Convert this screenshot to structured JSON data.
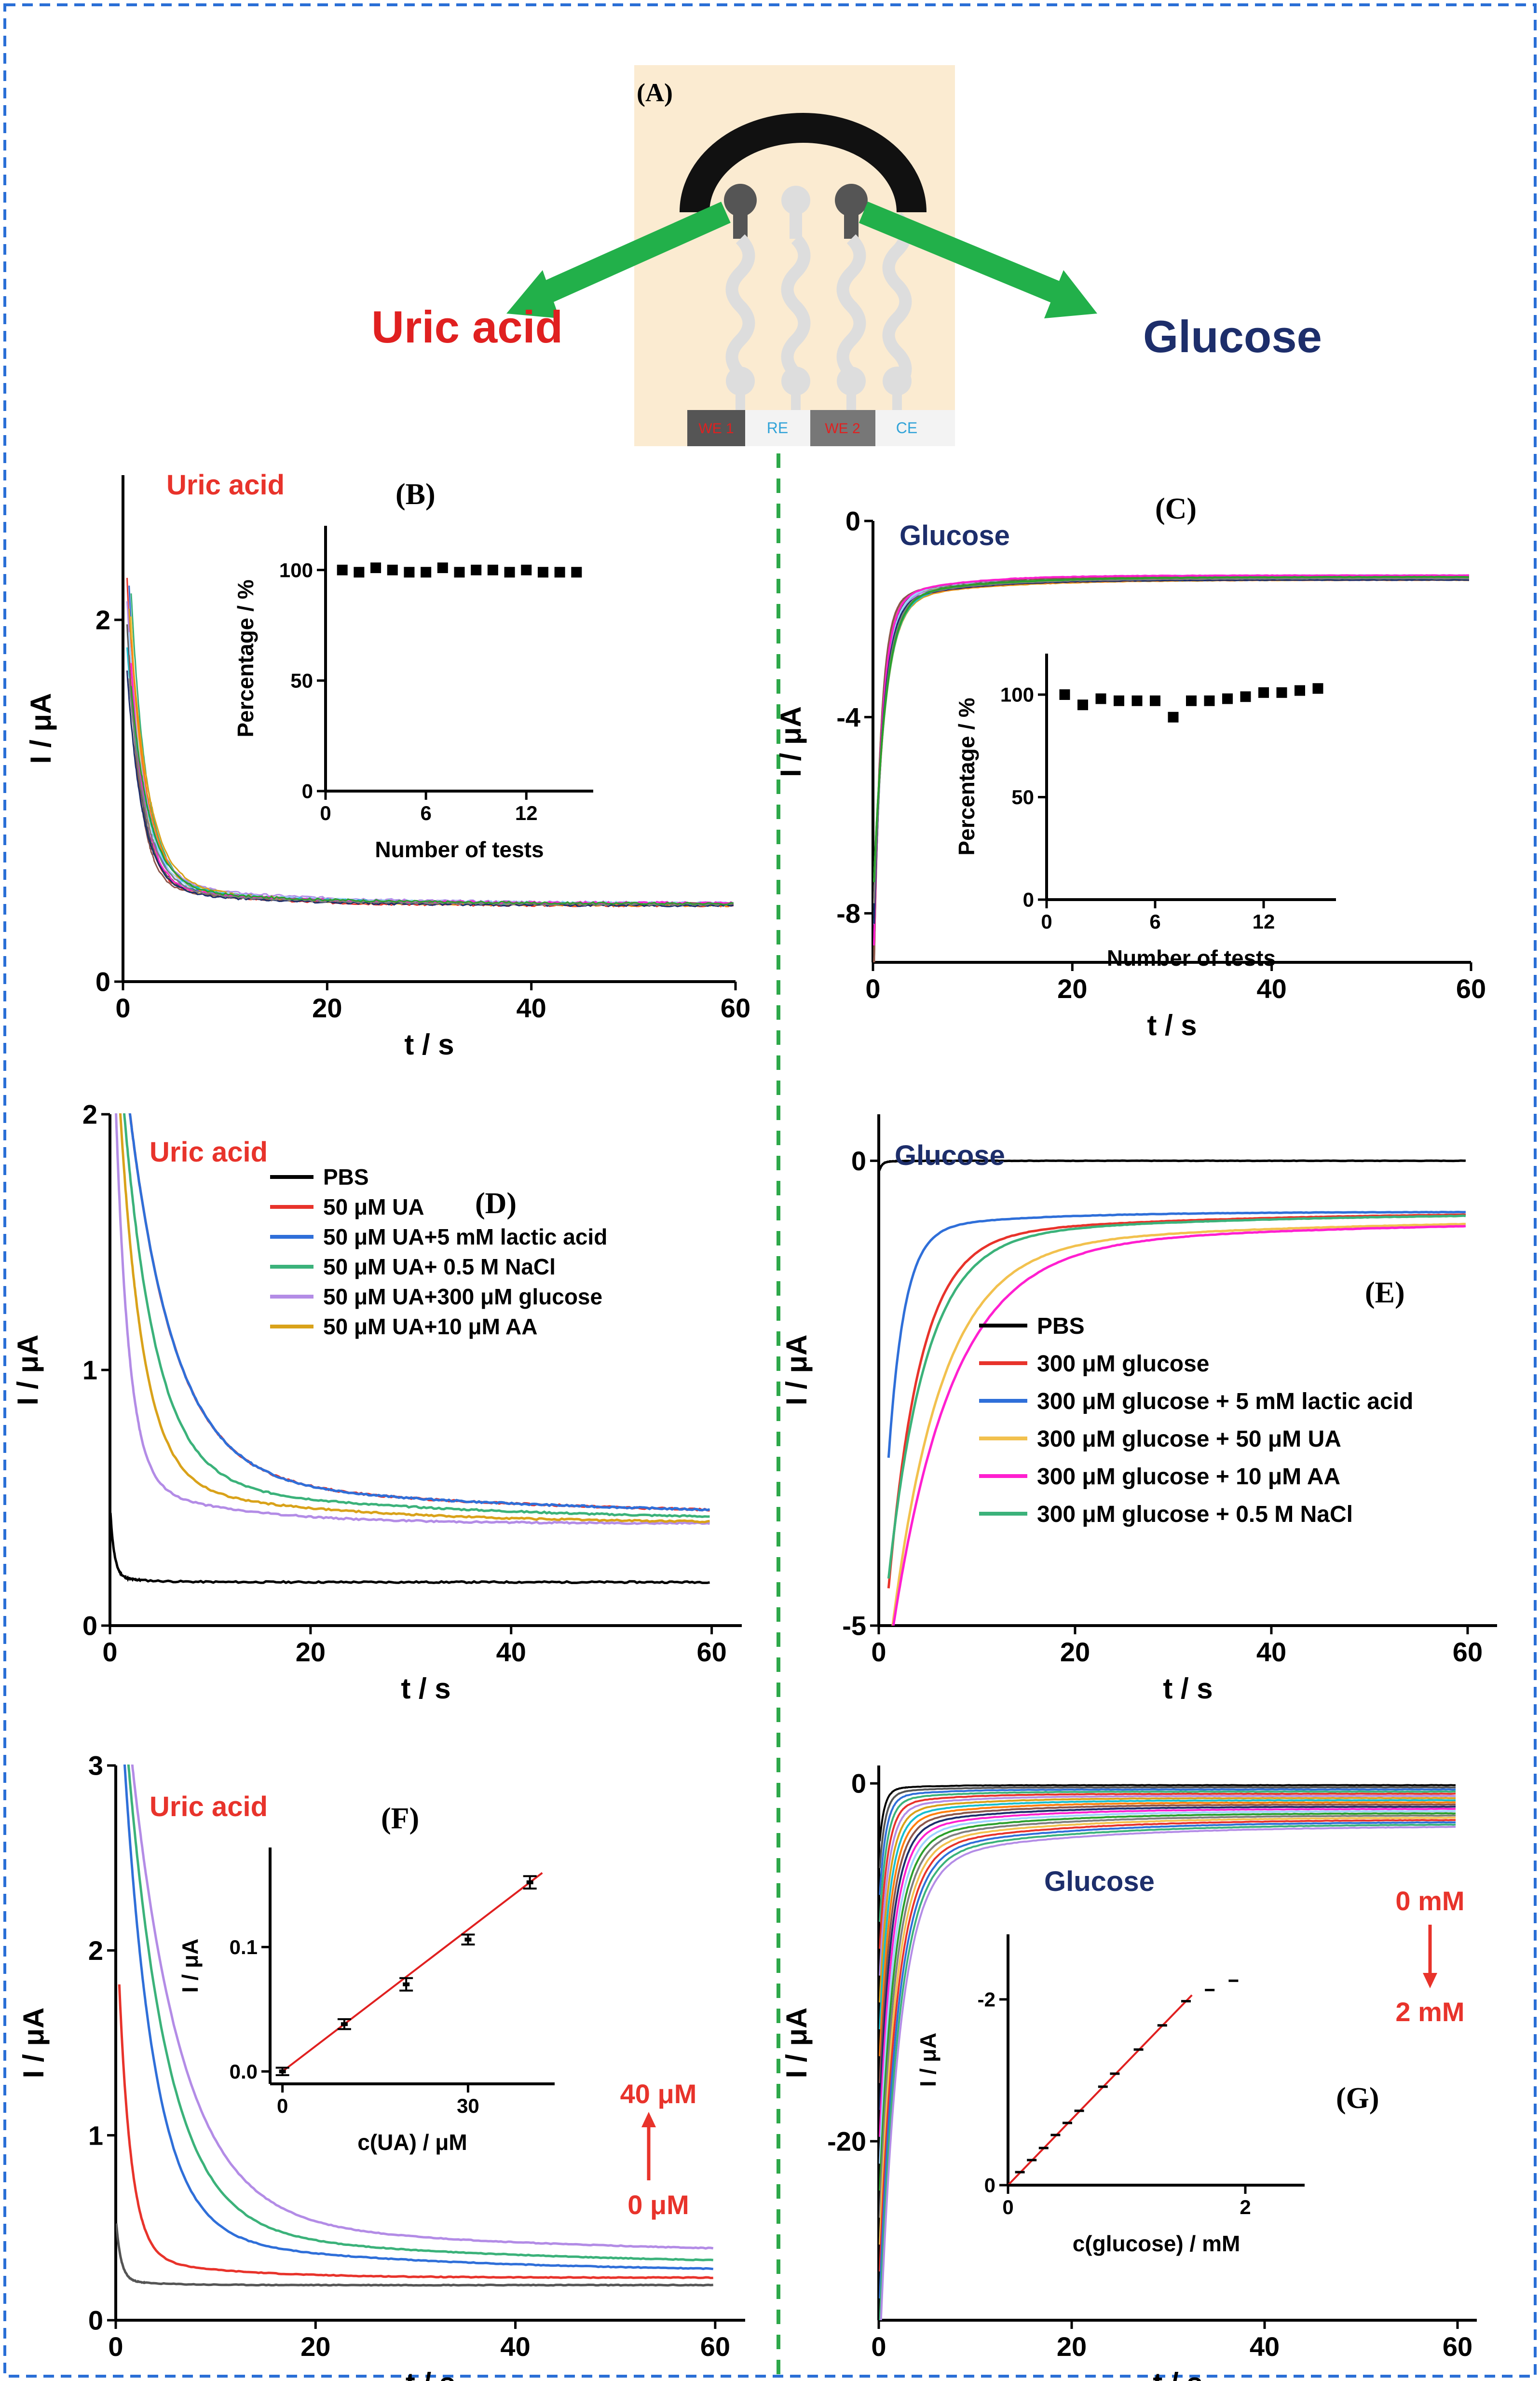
{
  "colors": {
    "black": "#000000",
    "red": "#e8332b",
    "blue": "#2f6fd9",
    "green": "#3bb27a",
    "lavender": "#b38ce6",
    "orange": "#d9a21a",
    "yellowish": "#f2c14e",
    "magenta": "#ff1fd0",
    "gray": "#666666",
    "navy": "#1d2e6b",
    "fitline": "#e02020",
    "divider": "#2ea84a",
    "border": "#2a6fd6",
    "schematic_bg": "#fbebd1"
  },
  "panel_a": {
    "label": "(A)",
    "left_target": "Uric acid",
    "right_target": "Glucose",
    "electrodes": [
      "WE 1",
      "RE",
      "WE 2",
      "CE"
    ]
  },
  "chart_data": [
    {
      "panel": "(B)",
      "type": "line",
      "annotation": "Uric acid",
      "xlabel": "t / s",
      "ylabel": "I / μA",
      "xlim": [
        0,
        60
      ],
      "ylim": [
        0,
        2.8
      ],
      "xticks": [
        0,
        20,
        40,
        60
      ],
      "yticks": [
        0,
        2
      ],
      "xticklabels": [
        "0",
        "20",
        "40",
        "60"
      ],
      "yticklabels": [
        "0",
        "2"
      ],
      "series_count": 15,
      "description_values": {
        "start_current": 2.1,
        "plateau_current": 0.42
      },
      "inset": {
        "type": "scatter",
        "xlabel": "Number of tests",
        "ylabel": "Percentage / %",
        "xlim": [
          0,
          16
        ],
        "ylim": [
          0,
          120
        ],
        "xticks": [
          0,
          6,
          12
        ],
        "yticks": [
          0,
          50,
          100
        ],
        "xticklabels": [
          "0",
          "6",
          "12"
        ],
        "yticklabels": [
          "0",
          "50",
          "100"
        ],
        "x": [
          1,
          2,
          3,
          4,
          5,
          6,
          7,
          8,
          9,
          10,
          11,
          12,
          13,
          14,
          15
        ],
        "y": [
          100,
          99,
          101,
          100,
          99,
          99,
          101,
          99,
          100,
          100,
          99,
          100,
          99,
          99,
          99
        ]
      }
    },
    {
      "panel": "(C)",
      "type": "line",
      "annotation": "Glucose",
      "xlabel": "t / s",
      "ylabel": "I / μA",
      "xlim": [
        0,
        60
      ],
      "ylim": [
        -9,
        0
      ],
      "xticks": [
        0,
        20,
        40,
        60
      ],
      "yticks": [
        -8,
        -4,
        0
      ],
      "xticklabels": [
        "0",
        "20",
        "40",
        "60"
      ],
      "yticklabels": [
        "-8",
        "-4",
        "0"
      ],
      "series_count": 15,
      "description_values": {
        "start_current": -8.5,
        "plateau_current": -1.2
      },
      "inset": {
        "type": "scatter",
        "xlabel": "Number of tests",
        "ylabel": "Percentage / %",
        "xlim": [
          0,
          16
        ],
        "ylim": [
          0,
          120
        ],
        "xticks": [
          0,
          6,
          12
        ],
        "yticks": [
          0,
          50,
          100
        ],
        "xticklabels": [
          "0",
          "6",
          "12"
        ],
        "yticklabels": [
          "0",
          "50",
          "100"
        ],
        "x": [
          1,
          2,
          3,
          4,
          5,
          6,
          7,
          8,
          9,
          10,
          11,
          12,
          13,
          14,
          15
        ],
        "y": [
          100,
          95,
          98,
          97,
          97,
          97,
          89,
          97,
          97,
          98,
          99,
          101,
          101,
          102,
          103
        ]
      }
    },
    {
      "panel": "(D)",
      "type": "line",
      "annotation": "Uric acid",
      "xlabel": "t / s",
      "ylabel": "I / μA",
      "xlim": [
        0,
        63
      ],
      "ylim": [
        0,
        2
      ],
      "xticks": [
        0,
        20,
        40,
        60
      ],
      "yticks": [
        0,
        1,
        2
      ],
      "xticklabels": [
        "0",
        "20",
        "40",
        "60"
      ],
      "yticklabels": [
        "0",
        "1",
        "2"
      ],
      "series": [
        {
          "name": "PBS",
          "color": "#000000",
          "plateau": 0.17,
          "peak": 0.42
        },
        {
          "name": "50 μM UA",
          "color": "#e8332b",
          "plateau": 0.42,
          "peak": 2.6
        },
        {
          "name": "50 μM UA+5 mM lactic acid",
          "color": "#2f6fd9",
          "plateau": 0.42,
          "peak": 2.6
        },
        {
          "name": "50 μM UA+ 0.5 M NaCl",
          "color": "#3bb27a",
          "plateau": 0.41,
          "peak": 2.6
        },
        {
          "name": "50 μM UA+300 μM glucose",
          "color": "#b38ce6",
          "plateau": 0.4,
          "peak": 2.6
        },
        {
          "name": "50 μM UA+10 μM AA",
          "color": "#d9a21a",
          "plateau": 0.4,
          "peak": 2.6
        }
      ]
    },
    {
      "panel": "(E)",
      "type": "line",
      "annotation": "Glucose",
      "xlabel": "t / s",
      "ylabel": "I / μA",
      "xlim": [
        0,
        63
      ],
      "ylim": [
        -5,
        0.5
      ],
      "xticks": [
        0,
        20,
        40,
        60
      ],
      "yticks": [
        -5,
        0
      ],
      "xticklabels": [
        "0",
        "20",
        "40",
        "60"
      ],
      "yticklabels": [
        "-5",
        "0"
      ],
      "series": [
        {
          "name": "PBS",
          "color": "#000000",
          "plateau": 0.0,
          "peak": -0.1
        },
        {
          "name": "300 μM glucose",
          "color": "#e8332b",
          "plateau": -0.55,
          "peak": -4.3
        },
        {
          "name": "300 μM glucose + 5 mM lactic acid",
          "color": "#2f6fd9",
          "plateau": -0.55,
          "peak": -3.0
        },
        {
          "name": "300 μM glucose + 50 μM UA",
          "color": "#f2c14e",
          "plateau": -0.6,
          "peak": -5.0
        },
        {
          "name": "300 μM glucose + 10 μM AA",
          "color": "#ff1fd0",
          "plateau": -0.6,
          "peak": -5.0
        },
        {
          "name": "300 μM glucose + 0.5 M NaCl",
          "color": "#3bb27a",
          "plateau": -0.55,
          "peak": -4.2
        }
      ]
    },
    {
      "panel": "(F)",
      "type": "line",
      "annotation": "Uric acid",
      "xlabel": "t / s",
      "ylabel": "I / μA",
      "xlim": [
        0,
        63
      ],
      "ylim": [
        0,
        3
      ],
      "xticks": [
        0,
        20,
        40,
        60
      ],
      "yticks": [
        0,
        1,
        2,
        3
      ],
      "xticklabels": [
        "0",
        "20",
        "40",
        "60"
      ],
      "yticklabels": [
        "0",
        "1",
        "2",
        "3"
      ],
      "concentration_arrow": {
        "top": "40 μM",
        "bottom": "0 μM"
      },
      "series": [
        {
          "color": "#555555",
          "plateau": 0.19,
          "peak": 0.5
        },
        {
          "color": "#e8332b",
          "plateau": 0.23,
          "peak": 1.7
        },
        {
          "color": "#2f6fd9",
          "plateau": 0.26,
          "peak": 3.0
        },
        {
          "color": "#3bb27a",
          "plateau": 0.29,
          "peak": 3.0
        },
        {
          "color": "#b38ce6",
          "plateau": 0.34,
          "peak": 3.0
        }
      ],
      "inset": {
        "type": "scatter",
        "xlabel": "c(UA) / μM",
        "ylabel": "I / μA",
        "xlim": [
          -2,
          44
        ],
        "ylim": [
          -0.01,
          0.18
        ],
        "xticks": [
          0,
          30
        ],
        "yticks": [
          0.0,
          0.1
        ],
        "xticklabels": [
          "0",
          "30"
        ],
        "yticklabels": [
          "0.0",
          "0.1"
        ],
        "x": [
          0,
          10,
          20,
          30,
          40
        ],
        "y": [
          0.0,
          0.038,
          0.07,
          0.106,
          0.152
        ],
        "err": [
          0.003,
          0.004,
          0.005,
          0.004,
          0.005
        ],
        "fit": {
          "slope": 0.0038,
          "intercept": 0.0
        }
      }
    },
    {
      "panel": "(G)",
      "type": "line",
      "annotation": "Glucose",
      "xlabel": "t / s",
      "ylabel": "I / μA",
      "xlim": [
        0,
        62
      ],
      "ylim": [
        -30,
        1
      ],
      "xticks": [
        0,
        20,
        40,
        60
      ],
      "yticks": [
        -20,
        0
      ],
      "xticklabels": [
        "0",
        "20",
        "40",
        "60"
      ],
      "yticklabels": [
        "-20",
        "0"
      ],
      "concentration_arrow": {
        "top": "0 mM",
        "bottom": "2 mM"
      },
      "series_count": 20,
      "inset": {
        "type": "scatter",
        "xlabel": "c(glucose) / mM",
        "ylabel": "I / μA",
        "xlim": [
          0,
          2.5
        ],
        "ylim": [
          0,
          -2.7
        ],
        "xticks": [
          0,
          2
        ],
        "yticks": [
          0,
          -2
        ],
        "xticklabels": [
          "0",
          "2"
        ],
        "yticklabels": [
          "0",
          "-2"
        ],
        "x": [
          0,
          0.1,
          0.2,
          0.3,
          0.4,
          0.5,
          0.6,
          0.8,
          0.9,
          1.1,
          1.3,
          1.5,
          1.7,
          1.9
        ],
        "y": [
          0,
          -0.14,
          -0.27,
          -0.4,
          -0.54,
          -0.67,
          -0.8,
          -1.06,
          -1.2,
          -1.46,
          -1.72,
          -1.98,
          -2.1,
          -2.2
        ],
        "fit": {
          "slope": -1.32,
          "intercept": 0.0,
          "xmax": 1.55
        }
      }
    }
  ]
}
